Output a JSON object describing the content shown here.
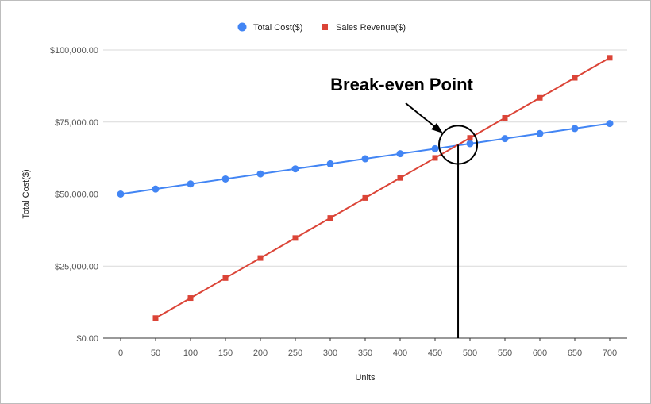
{
  "chart_data": {
    "type": "line",
    "xlabel": "Units",
    "ylabel": "Total Cost($)",
    "x": [
      0,
      50,
      100,
      150,
      200,
      250,
      300,
      350,
      400,
      450,
      500,
      550,
      600,
      650,
      700
    ],
    "xlim": [
      -25,
      725
    ],
    "ylim": [
      0,
      100000
    ],
    "y_ticks": [
      "$0.00",
      "$25,000.00",
      "$50,000.00",
      "$75,000.00",
      "$100,000.00"
    ],
    "grid": true,
    "legend": "top-center",
    "series": [
      {
        "name": "Total Cost($)",
        "color": "#4285f4",
        "marker": "circle",
        "x": [
          0,
          50,
          100,
          150,
          200,
          250,
          300,
          350,
          400,
          450,
          500,
          550,
          600,
          650,
          700
        ],
        "values": [
          50000,
          51750,
          53500,
          55250,
          57000,
          58750,
          60500,
          62250,
          64000,
          65750,
          67500,
          69250,
          71000,
          72750,
          74500
        ]
      },
      {
        "name": "Sales Revenue($)",
        "color": "#db4437",
        "marker": "square",
        "x": [
          50,
          100,
          150,
          200,
          250,
          300,
          350,
          400,
          450,
          500,
          550,
          600,
          650,
          700
        ],
        "values": [
          6950,
          13900,
          20850,
          27800,
          34750,
          41700,
          48650,
          55600,
          62550,
          69500,
          76450,
          83400,
          90350,
          97300
        ]
      }
    ],
    "annotations": [
      {
        "text": "Break-even Point",
        "x": 483,
        "y": 67100
      }
    ]
  }
}
